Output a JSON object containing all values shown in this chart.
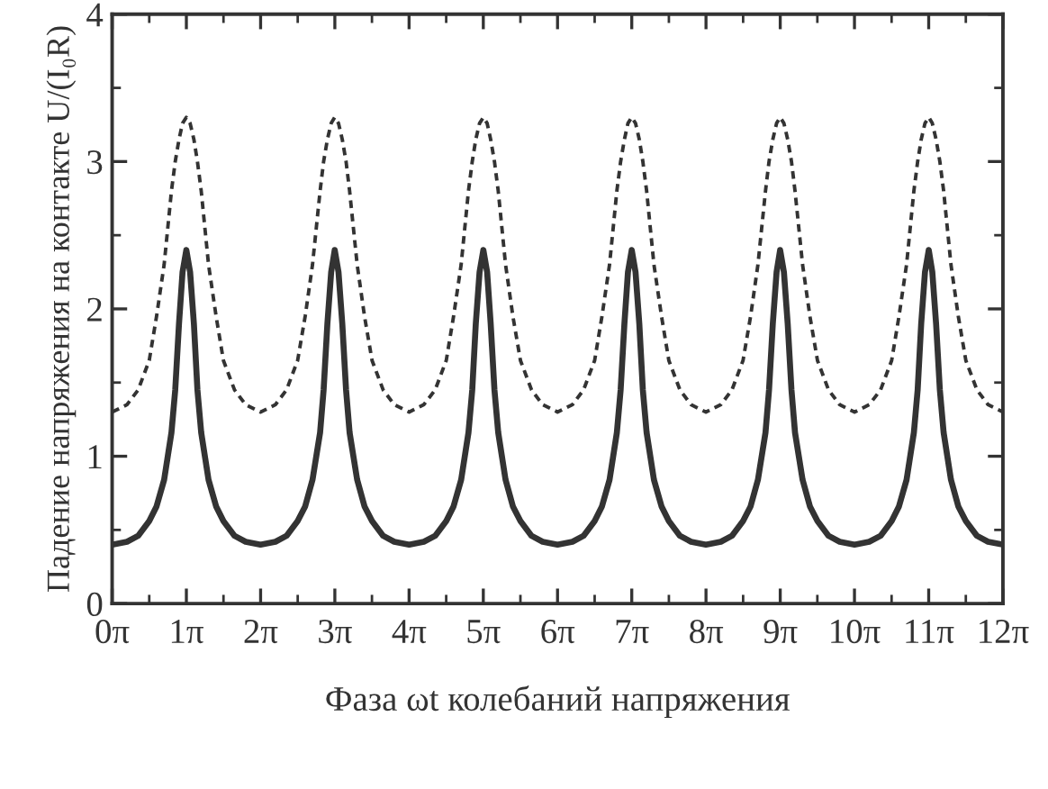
{
  "chart_data": {
    "type": "line",
    "xlabel": "Фаза ωt колебаний напряжения",
    "ylabel": "Падение напряжения на контакте U/(I₀R)",
    "x": [
      0,
      0.63,
      1.1,
      1.57,
      1.88,
      2.2,
      2.51,
      2.67,
      2.83,
      2.98,
      3.14,
      3.3,
      3.46,
      3.61,
      3.77,
      4.08,
      4.4,
      4.71,
      5.18,
      5.65,
      6.28,
      6.91,
      7.38,
      7.85,
      8.17,
      8.48,
      8.8,
      8.95,
      9.11,
      9.27,
      9.42,
      9.58,
      9.74,
      9.9,
      10.05,
      10.37,
      10.68,
      11.0,
      11.47,
      11.94,
      12.57,
      13.19,
      13.67,
      14.14,
      14.45,
      14.77,
      15.08,
      15.24,
      15.39,
      15.55,
      15.71,
      15.87,
      16.02,
      16.18,
      16.34,
      16.65,
      16.96,
      17.28,
      17.75,
      18.22,
      18.85,
      19.48,
      19.95,
      20.42,
      20.73,
      21.05,
      21.36,
      21.52,
      21.68,
      21.83,
      21.99,
      22.15,
      22.31,
      22.46,
      22.62,
      22.93,
      23.25,
      23.56,
      24.03,
      24.5,
      25.13,
      25.76,
      26.23,
      26.7,
      27.02,
      27.33,
      27.65,
      27.8,
      27.96,
      28.12,
      28.27,
      28.43,
      28.59,
      28.75,
      28.9,
      29.22,
      29.53,
      29.85,
      30.32,
      30.79,
      31.42,
      32.04,
      32.52,
      32.99,
      33.3,
      33.62,
      33.93,
      34.09,
      34.24,
      34.4,
      34.56,
      34.71,
      34.87,
      35.03,
      35.19,
      35.5,
      35.81,
      36.13,
      36.6,
      37.07,
      37.6991
    ],
    "series": [
      {
        "color": "#333333",
        "line_style": "dashed",
        "values": [
          1.3,
          1.35,
          1.45,
          1.65,
          1.95,
          2.3,
          2.8,
          3.0,
          3.15,
          3.26,
          3.3,
          3.26,
          3.15,
          3.0,
          2.8,
          2.3,
          1.95,
          1.65,
          1.45,
          1.35,
          1.3,
          1.35,
          1.45,
          1.65,
          1.95,
          2.3,
          2.8,
          3.0,
          3.15,
          3.26,
          3.3,
          3.26,
          3.15,
          3.0,
          2.8,
          2.3,
          1.95,
          1.65,
          1.45,
          1.35,
          1.3,
          1.35,
          1.45,
          1.65,
          1.95,
          2.3,
          2.8,
          3.0,
          3.15,
          3.26,
          3.3,
          3.26,
          3.15,
          3.0,
          2.8,
          2.3,
          1.95,
          1.65,
          1.45,
          1.35,
          1.3,
          1.35,
          1.45,
          1.65,
          1.95,
          2.3,
          2.8,
          3.0,
          3.15,
          3.26,
          3.3,
          3.26,
          3.15,
          3.0,
          2.8,
          2.3,
          1.95,
          1.65,
          1.45,
          1.35,
          1.3,
          1.35,
          1.45,
          1.65,
          1.95,
          2.3,
          2.8,
          3.0,
          3.15,
          3.26,
          3.3,
          3.26,
          3.15,
          3.0,
          2.8,
          2.3,
          1.95,
          1.65,
          1.45,
          1.35,
          1.3,
          1.35,
          1.45,
          1.65,
          1.95,
          2.3,
          2.8,
          3.0,
          3.15,
          3.26,
          3.3,
          3.26,
          3.15,
          3.0,
          2.8,
          2.3,
          1.95,
          1.65,
          1.45,
          1.35,
          1.3
        ]
      },
      {
        "color": "#333333",
        "line_style": "solid",
        "values": [
          0.4,
          0.42,
          0.46,
          0.56,
          0.66,
          0.84,
          1.16,
          1.45,
          1.9,
          2.25,
          2.4,
          2.25,
          1.9,
          1.45,
          1.16,
          0.84,
          0.66,
          0.56,
          0.46,
          0.42,
          0.4,
          0.42,
          0.46,
          0.56,
          0.66,
          0.84,
          1.16,
          1.45,
          1.9,
          2.25,
          2.4,
          2.25,
          1.9,
          1.45,
          1.16,
          0.84,
          0.66,
          0.56,
          0.46,
          0.42,
          0.4,
          0.42,
          0.46,
          0.56,
          0.66,
          0.84,
          1.16,
          1.45,
          1.9,
          2.25,
          2.4,
          2.25,
          1.9,
          1.45,
          1.16,
          0.84,
          0.66,
          0.56,
          0.46,
          0.42,
          0.4,
          0.42,
          0.46,
          0.56,
          0.66,
          0.84,
          1.16,
          1.45,
          1.9,
          2.25,
          2.4,
          2.25,
          1.9,
          1.45,
          1.16,
          0.84,
          0.66,
          0.56,
          0.46,
          0.42,
          0.4,
          0.42,
          0.46,
          0.56,
          0.66,
          0.84,
          1.16,
          1.45,
          1.9,
          2.25,
          2.4,
          2.25,
          1.9,
          1.45,
          1.16,
          0.84,
          0.66,
          0.56,
          0.46,
          0.42,
          0.4,
          0.42,
          0.46,
          0.56,
          0.66,
          0.84,
          1.16,
          1.45,
          1.9,
          2.25,
          2.4,
          2.25,
          1.9,
          1.45,
          1.16,
          0.84,
          0.66,
          0.56,
          0.46,
          0.42,
          0.4
        ]
      }
    ],
    "xlim": [
      0,
      37.6991
    ],
    "xticks": [
      {
        "value": 0,
        "label": "0π"
      },
      {
        "value": 3.1416,
        "label": "1π"
      },
      {
        "value": 6.2832,
        "label": "2π"
      },
      {
        "value": 9.4248,
        "label": "3π"
      },
      {
        "value": 12.5664,
        "label": "4π"
      },
      {
        "value": 15.708,
        "label": "5π"
      },
      {
        "value": 18.8496,
        "label": "6π"
      },
      {
        "value": 21.9911,
        "label": "7π"
      },
      {
        "value": 25.1327,
        "label": "8π"
      },
      {
        "value": 28.2743,
        "label": "9π"
      },
      {
        "value": 31.4159,
        "label": "10π"
      },
      {
        "value": 34.5575,
        "label": "11π"
      },
      {
        "value": 37.6991,
        "label": "12π"
      }
    ],
    "ylim": [
      0,
      4
    ],
    "yticks": [
      0,
      1,
      2,
      3,
      4
    ],
    "grid": false,
    "legend": false
  }
}
